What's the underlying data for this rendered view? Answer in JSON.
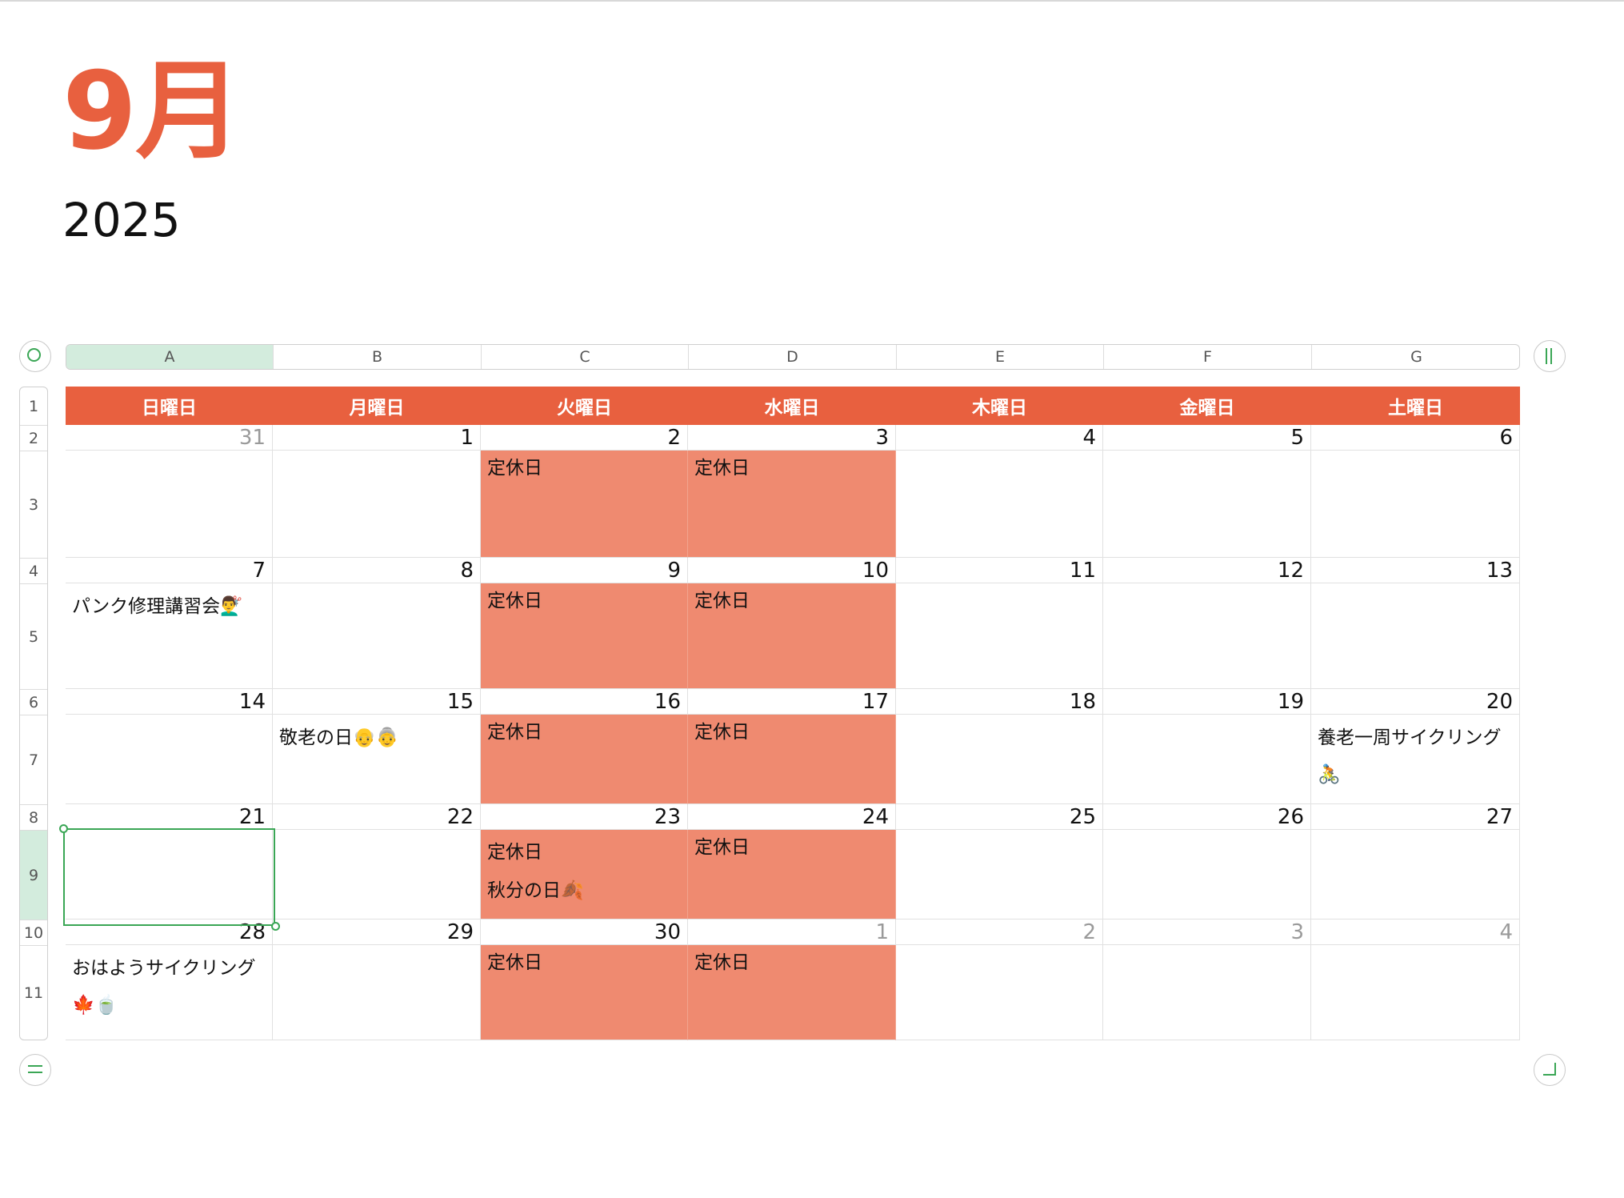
{
  "title": {
    "month": "9月",
    "year": "2025"
  },
  "column_headers": [
    "A",
    "B",
    "C",
    "D",
    "E",
    "F",
    "G"
  ],
  "row_headers": [
    "1",
    "2",
    "3",
    "4",
    "5",
    "6",
    "7",
    "8",
    "9",
    "10",
    "11"
  ],
  "selected_column": "A",
  "selected_row": "9",
  "weekdays": [
    "日曜日",
    "月曜日",
    "火曜日",
    "水曜日",
    "木曜日",
    "金曜日",
    "土曜日"
  ],
  "weeks": [
    {
      "dates": [
        "31",
        "1",
        "2",
        "3",
        "4",
        "5",
        "6"
      ],
      "dim": [
        true,
        false,
        false,
        false,
        false,
        false,
        false
      ],
      "events": [
        "",
        "",
        "定休日",
        "定休日",
        "",
        "",
        ""
      ],
      "closed": [
        false,
        false,
        true,
        true,
        false,
        false,
        false
      ]
    },
    {
      "dates": [
        "7",
        "8",
        "9",
        "10",
        "11",
        "12",
        "13"
      ],
      "dim": [
        false,
        false,
        false,
        false,
        false,
        false,
        false
      ],
      "events": [
        "パンク修理講習会💇‍♂️",
        "",
        "定休日",
        "定休日",
        "",
        "",
        ""
      ],
      "closed": [
        false,
        false,
        true,
        true,
        false,
        false,
        false
      ]
    },
    {
      "dates": [
        "14",
        "15",
        "16",
        "17",
        "18",
        "19",
        "20"
      ],
      "dim": [
        false,
        false,
        false,
        false,
        false,
        false,
        false
      ],
      "events": [
        "",
        "敬老の日👴👵",
        "定休日",
        "定休日",
        "",
        "",
        "養老一周サイクリング🚴"
      ],
      "closed": [
        false,
        false,
        true,
        true,
        false,
        false,
        false
      ]
    },
    {
      "dates": [
        "21",
        "22",
        "23",
        "24",
        "25",
        "26",
        "27"
      ],
      "dim": [
        false,
        false,
        false,
        false,
        false,
        false,
        false
      ],
      "events": [
        "",
        "",
        "定休日\n秋分の日🍂",
        "定休日",
        "",
        "",
        ""
      ],
      "closed": [
        false,
        false,
        true,
        true,
        false,
        false,
        false
      ]
    },
    {
      "dates": [
        "28",
        "29",
        "30",
        "1",
        "2",
        "3",
        "4"
      ],
      "dim": [
        false,
        false,
        false,
        true,
        true,
        true,
        true
      ],
      "events": [
        "おはようサイクリング🍁🍵",
        "",
        "定休日",
        "定休日",
        "",
        "",
        ""
      ],
      "closed": [
        false,
        false,
        true,
        true,
        false,
        false,
        false
      ]
    }
  ],
  "colors": {
    "accent": "#e8603f",
    "closed_fill": "#ef8a70",
    "selection": "#3aa655"
  }
}
